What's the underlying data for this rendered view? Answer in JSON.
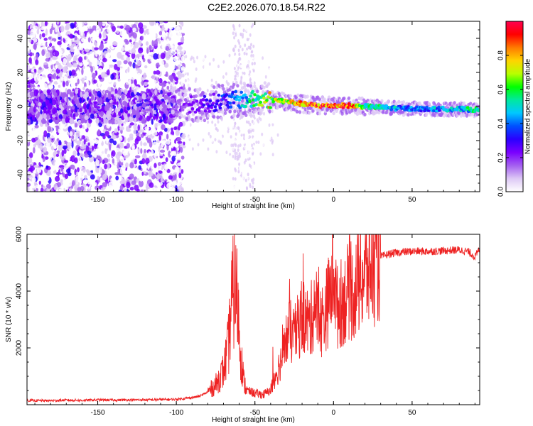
{
  "title": "C2E2.2026.070.18.54.R22",
  "chart_data": [
    {
      "type": "heatmap",
      "name": "spectrogram",
      "title": "C2E2.2026.070.18.54.R22",
      "xlabel": "Height of straight line (km)",
      "ylabel": "Frequency (Hz)",
      "xlim": [
        -195,
        93
      ],
      "ylim": [
        -50,
        50
      ],
      "xticks": [
        -150,
        -100,
        -50,
        0,
        50
      ],
      "yticks": [
        -40,
        -20,
        0,
        20,
        40
      ],
      "colorbar": {
        "label": "Normalized spectral amplitude",
        "range": [
          0,
          1
        ],
        "ticks": [
          "0.0",
          "0.2",
          "0.4",
          "0.6",
          "0.8"
        ],
        "colors": [
          "#ffffff",
          "#ddc8f5",
          "#a45ff0",
          "#7a00ff",
          "#2a00ff",
          "#0050ff",
          "#00c8ff",
          "#00e8a0",
          "#00ff00",
          "#b8ff00",
          "#ffd400",
          "#ff7a00",
          "#ff0000",
          "#ff0050"
        ]
      },
      "ridge": {
        "x": [
          -100,
          -90,
          -80,
          -70,
          -60,
          -50,
          -45,
          -40,
          -35,
          -30,
          -20,
          -10,
          0,
          10,
          20,
          40,
          60,
          80,
          93
        ],
        "frequency": [
          0,
          1,
          2,
          3,
          4,
          4,
          4,
          4,
          3.5,
          3,
          1.5,
          0.5,
          0.5,
          0.5,
          0,
          -1,
          -1.5,
          -1.5,
          -2
        ],
        "amplitude": [
          0.2,
          0.25,
          0.3,
          0.35,
          0.45,
          0.6,
          0.7,
          0.75,
          0.75,
          0.7,
          0.85,
          0.9,
          0.95,
          0.95,
          0.6,
          0.45,
          0.45,
          0.5,
          0.6
        ]
      }
    },
    {
      "type": "line",
      "name": "snr",
      "xlabel": "Height of straight line (km)",
      "ylabel": "SNR (10 * v/v)",
      "xlim": [
        -195,
        93
      ],
      "ylim": [
        0,
        6000
      ],
      "xticks": [
        -150,
        -100,
        -50,
        0,
        50
      ],
      "yticks": [
        2000,
        4000,
        6000
      ],
      "color": "#ee2222",
      "x": [
        -195,
        -180,
        -170,
        -160,
        -150,
        -140,
        -130,
        -120,
        -110,
        -100,
        -90,
        -85,
        -80,
        -75,
        -70,
        -67,
        -65,
        -63,
        -61,
        -59,
        -57,
        -55,
        -50,
        -45,
        -40,
        -38,
        -35,
        -32,
        -30,
        -28,
        -25,
        -22,
        -20,
        -18,
        -15,
        -12,
        -10,
        -8,
        -5,
        -3,
        -1,
        0,
        2,
        5,
        8,
        10,
        12,
        15,
        18,
        20,
        25,
        30,
        35,
        40,
        45,
        50,
        60,
        70,
        80,
        85,
        88,
        90,
        93
      ],
      "y": [
        150,
        140,
        160,
        150,
        170,
        160,
        170,
        170,
        180,
        190,
        250,
        300,
        450,
        700,
        1200,
        2000,
        3500,
        4200,
        3600,
        1800,
        800,
        500,
        400,
        350,
        500,
        900,
        1300,
        1800,
        2300,
        2600,
        2400,
        2800,
        3200,
        3000,
        2800,
        3600,
        3200,
        2900,
        3300,
        3700,
        4200,
        5200,
        3400,
        3600,
        3800,
        4100,
        3900,
        4200,
        4500,
        4600,
        4900,
        5200,
        5300,
        5350,
        5380,
        5400,
        5400,
        5420,
        5450,
        5400,
        5300,
        5200,
        5500
      ]
    }
  ]
}
